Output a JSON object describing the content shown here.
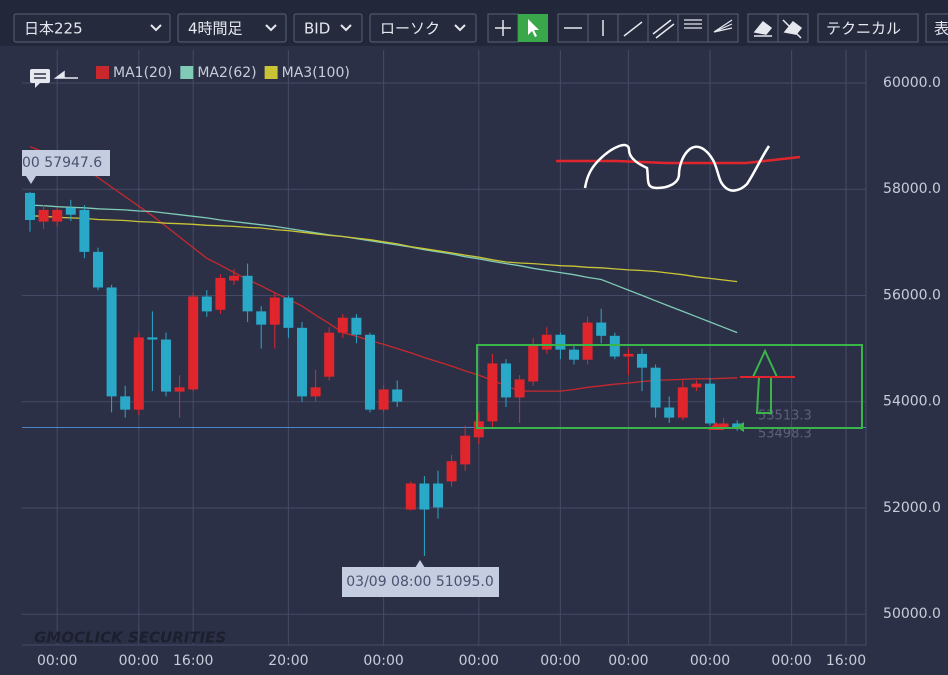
{
  "toolbar": {
    "symbol": "日本225",
    "timeframe": "4時間足",
    "price_type": "BID",
    "chart_style": "ローソク",
    "technical": "テクニカル",
    "more": "表"
  },
  "watermark": "GMOCLICK SECURITIES",
  "chart_data": {
    "type": "candlestick",
    "categories": [
      null,
      null,
      "00:00",
      null,
      null,
      null,
      null,
      null,
      "00:00",
      null,
      null,
      null,
      "16:00",
      null,
      null,
      null,
      null,
      null,
      null,
      "20:00",
      null,
      null,
      null,
      null,
      null,
      null,
      "00:00",
      null,
      null,
      null,
      null,
      null,
      null,
      "00:00",
      null,
      null,
      null,
      null,
      null,
      "00:00",
      null,
      null,
      null,
      null,
      "00:00",
      null,
      null,
      null,
      null,
      null,
      "00:00",
      null,
      null,
      null,
      null,
      null,
      "00:00",
      null,
      null,
      null,
      "16:00",
      null
    ],
    "open": [
      57930,
      57390,
      57390,
      57650,
      57610,
      56820,
      56150,
      54100,
      53850,
      55210,
      55170,
      54190,
      54230,
      55980,
      55730,
      56280,
      56370,
      55700,
      55450,
      55960,
      55390,
      54100,
      54470,
      55300,
      55580,
      55260,
      53850,
      54230,
      51970,
      52460,
      52460,
      52500,
      52820,
      53330,
      53630,
      54720,
      54080,
      54380,
      54980,
      55260,
      54980,
      54790,
      55490,
      55240,
      54850,
      54900,
      54640,
      53890,
      53700,
      54270,
      54340,
      53510,
      53590,
      null,
      null,
      null,
      null,
      null,
      null,
      null,
      null,
      null
    ],
    "high": [
      57950,
      57700,
      57650,
      57800,
      57700,
      56900,
      56200,
      54300,
      55300,
      55700,
      55300,
      54500,
      56050,
      56100,
      56400,
      56500,
      56600,
      55800,
      56050,
      56000,
      55500,
      54600,
      55400,
      55650,
      55650,
      55300,
      54300,
      54400,
      52500,
      52600,
      52700,
      53000,
      53550,
      53800,
      54900,
      54800,
      54500,
      55200,
      55400,
      55300,
      55050,
      55600,
      55750,
      55300,
      55000,
      55000,
      54700,
      54100,
      54400,
      54400,
      54450,
      53700,
      53650,
      null,
      null,
      null,
      null,
      null,
      null,
      null,
      null,
      null
    ],
    "low": [
      57200,
      57250,
      57300,
      57400,
      56700,
      56100,
      53800,
      53700,
      53750,
      54200,
      54100,
      53700,
      54200,
      55600,
      55650,
      56200,
      55500,
      55000,
      55000,
      55200,
      54000,
      54000,
      54400,
      55200,
      55100,
      53800,
      53800,
      53900,
      51950,
      51095,
      51800,
      52400,
      52700,
      53200,
      53500,
      53900,
      53600,
      54300,
      54900,
      54800,
      54700,
      54700,
      55100,
      54800,
      54500,
      54200,
      53700,
      53600,
      53650,
      54200,
      53550,
      53480,
      53450,
      null,
      null,
      null,
      null,
      null,
      null,
      null,
      null,
      null
    ],
    "close": [
      57420,
      57610,
      57610,
      57520,
      56820,
      56150,
      54100,
      53850,
      55210,
      55170,
      54190,
      54270,
      55980,
      55700,
      56330,
      56370,
      55700,
      55450,
      55960,
      55390,
      54100,
      54270,
      55300,
      55580,
      55260,
      53850,
      54230,
      54000,
      52460,
      51970,
      52010,
      52880,
      53360,
      53630,
      54720,
      54080,
      54420,
      55070,
      55260,
      54980,
      54790,
      55490,
      55240,
      54850,
      54900,
      54640,
      53890,
      53700,
      54270,
      54340,
      53590,
      53590,
      53490,
      null,
      null,
      null,
      null,
      null,
      null,
      null,
      null,
      null
    ],
    "up_color": "#e0262c",
    "down_color": "#2aa8c8",
    "series": [
      {
        "name": "MA1(20)",
        "color": "#c8282c",
        "values": [
          58800,
          58700,
          58600,
          58500,
          58400,
          58220,
          58040,
          57860,
          57680,
          57500,
          57300,
          57100,
          56900,
          56700,
          56570,
          56430,
          56300,
          56180,
          56050,
          55930,
          55800,
          55630,
          55470,
          55300,
          55230,
          55150,
          55080,
          55000,
          54920,
          54830,
          54750,
          54670,
          54580,
          54500,
          54400,
          54300,
          54200,
          54200,
          54200,
          54200,
          54230,
          54270,
          54300,
          54330,
          54350,
          54380,
          54400,
          54410,
          54420,
          54430,
          54430,
          54440,
          54450,
          null,
          null,
          null,
          null,
          null,
          null,
          null,
          null,
          null
        ]
      },
      {
        "name": "MA2(62)",
        "color": "#7fcbb5",
        "values": [
          57700,
          57690,
          57670,
          57660,
          57650,
          57630,
          57620,
          57610,
          57590,
          57580,
          57550,
          57520,
          57490,
          57460,
          57420,
          57390,
          57360,
          57330,
          57300,
          57260,
          57220,
          57180,
          57140,
          57110,
          57070,
          57030,
          56990,
          56950,
          56910,
          56860,
          56820,
          56780,
          56730,
          56690,
          56640,
          56600,
          56560,
          56510,
          56470,
          56430,
          56390,
          56340,
          56300,
          56200,
          56100,
          56000,
          55900,
          55800,
          55700,
          55600,
          55500,
          55400,
          55300,
          null,
          null,
          null,
          null,
          null,
          null,
          null,
          null,
          null
        ]
      },
      {
        "name": "MA3(100)",
        "color": "#c9c436",
        "values": [
          57500,
          57490,
          57470,
          57460,
          57450,
          57430,
          57420,
          57410,
          57390,
          57380,
          57360,
          57350,
          57340,
          57320,
          57310,
          57300,
          57280,
          57270,
          57240,
          57220,
          57190,
          57160,
          57130,
          57110,
          57080,
          57050,
          57010,
          56970,
          56920,
          56880,
          56840,
          56800,
          56760,
          56720,
          56670,
          56630,
          56610,
          56600,
          56580,
          56560,
          56550,
          56530,
          56520,
          56500,
          56480,
          56470,
          56450,
          56420,
          56390,
          56350,
          56320,
          56290,
          56260,
          null,
          null,
          null,
          null,
          null,
          null,
          null,
          null,
          null
        ]
      }
    ],
    "ylim": [
      49420,
      60620
    ],
    "yticks": [
      {
        "value": 50000,
        "label": "50000.0"
      },
      {
        "value": 52000,
        "label": "52000.0"
      },
      {
        "value": 54000,
        "label": "54000.0"
      },
      {
        "value": 56000,
        "label": "56000.0"
      },
      {
        "value": 58000,
        "label": "58000.0"
      },
      {
        "value": 60000,
        "label": "60000.0"
      }
    ],
    "grid": true,
    "current_price": 53513.3,
    "annotations": {
      "high_label": "00 57947.6",
      "low_label": "03/09 08:00 51095.0",
      "ask_label": "53498.3"
    }
  }
}
